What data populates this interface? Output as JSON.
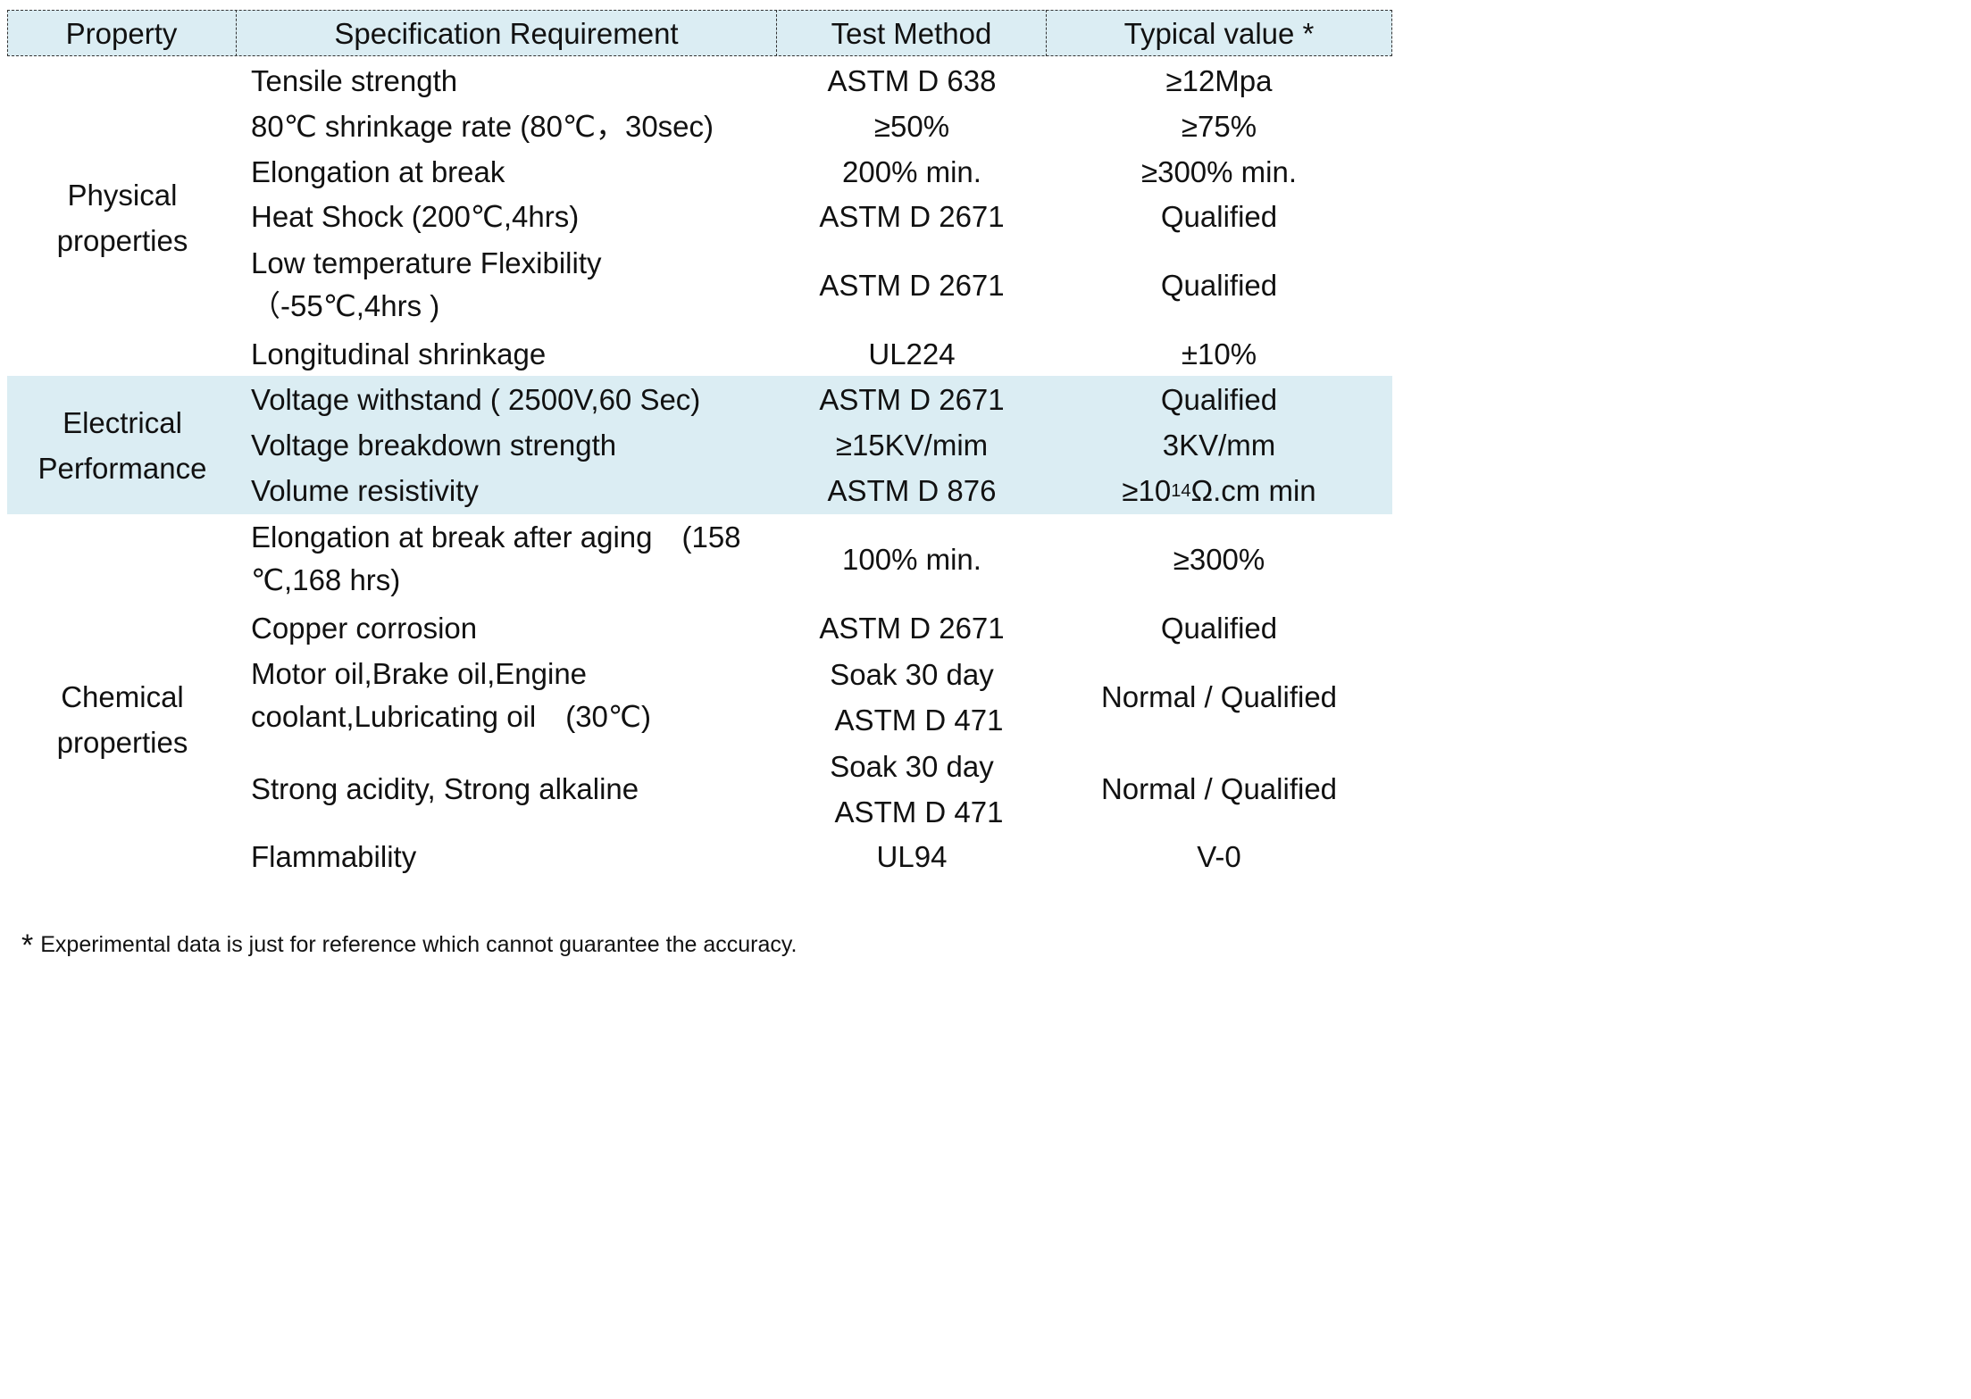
{
  "header": {
    "property": "Property",
    "spec": "Specification Requirement",
    "test": "Test Method",
    "typical": "Typical value *"
  },
  "groups": {
    "physical": "Physical properties",
    "electrical": "Electrical Performance",
    "chemical": "Chemical properties"
  },
  "rows": [
    {
      "spec": "Tensile strength",
      "test": "ASTM D 638",
      "typical": "≥12Mpa"
    },
    {
      "spec": "80℃  shrinkage rate (80℃，30sec)",
      "test": "≥50%",
      "typical": "≥75%"
    },
    {
      "spec": "Elongation at break",
      "test": "200% min.",
      "typical": "≥300% min."
    },
    {
      "spec": "Heat Shock (200℃,4hrs)",
      "test": "ASTM D 2671",
      "typical": "Qualified"
    },
    {
      "spec_line1": "Low temperature Flexibility",
      "spec_line2": "（-55℃,4hrs )",
      "test": "ASTM D 2671",
      "typical": "Qualified"
    },
    {
      "spec": "Longitudinal shrinkage",
      "test": "UL224",
      "typical": "±10%"
    },
    {
      "spec": "Voltage withstand ( 2500V,60 Sec)",
      "test": "ASTM D 2671",
      "typical": "Qualified"
    },
    {
      "spec": "Voltage breakdown strength",
      "test": "≥15KV/mim",
      "typical": "3KV/mm"
    },
    {
      "spec": "Volume resistivity",
      "test": "ASTM D 876",
      "typical_pre": "≥10",
      "typical_sup": "14",
      "typical_post": "Ω.cm min"
    },
    {
      "spec_line1": "Elongation at break after aging　(158",
      "spec_line2": "℃,168 hrs)",
      "test": "100% min.",
      "typical": "≥300%"
    },
    {
      "spec": "Copper corrosion",
      "test": "ASTM D 2671",
      "typical": "Qualified"
    },
    {
      "spec_line1": "Motor oil,Brake oil,Engine",
      "spec_line2": "coolant,Lubricating oil　(30℃)",
      "test_line1": "Soak 30 day",
      "test_line2": "ASTM D 471",
      "typical": "Normal / Qualified"
    },
    {
      "spec": "Strong acidity, Strong alkaline",
      "test_line1": "Soak 30 day",
      "test_line2": "ASTM D 471",
      "typical": "Normal / Qualified"
    },
    {
      "spec": "Flammability",
      "test": "UL94",
      "typical": "V-0"
    }
  ],
  "footnote": {
    "star": "*",
    "text": "Experimental data is just for reference which cannot guarantee the accuracy."
  }
}
